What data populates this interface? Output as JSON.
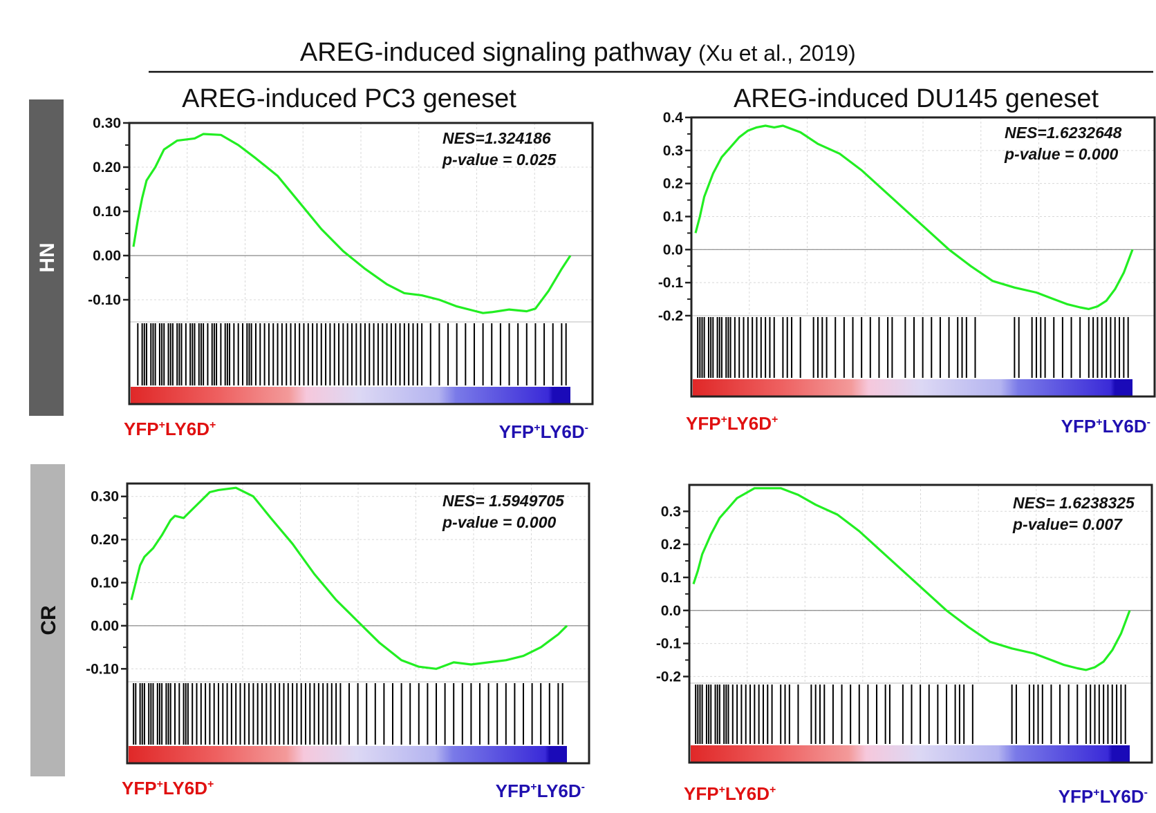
{
  "header": {
    "title_main": "AREG-induced signaling pathway",
    "title_citation": "(Xu et al., 2019)"
  },
  "rows": [
    {
      "label": "HN",
      "bg": "#5f5f5f",
      "fg": "#ffffff"
    },
    {
      "label": "CR",
      "bg": "#b4b4b4",
      "fg": "#111111"
    }
  ],
  "columns": [
    {
      "title": "AREG-induced PC3 geneset"
    },
    {
      "title": "AREG-induced DU145 geneset"
    }
  ],
  "colors": {
    "curve": "#22ee22",
    "positive_group": "#e01010",
    "negative_group": "#2010b0",
    "frame": "#222222",
    "hits": "#000000",
    "grid": "#d8d8d8"
  },
  "chart_data": [
    {
      "type": "line",
      "name": "HN / AREG-induced PC3 geneset",
      "ylim": [
        -0.15,
        0.3
      ],
      "yticks": [
        0.3,
        0.2,
        0.1,
        0.0,
        -0.1
      ],
      "ytick_labels": [
        "0.30",
        "0.20",
        "0.10",
        "0.00",
        "-0.10"
      ],
      "x": [
        0,
        0.01,
        0.02,
        0.03,
        0.05,
        0.07,
        0.1,
        0.14,
        0.16,
        0.2,
        0.24,
        0.28,
        0.33,
        0.38,
        0.43,
        0.48,
        0.53,
        0.58,
        0.62,
        0.66,
        0.7,
        0.74,
        0.78,
        0.8,
        0.82,
        0.84,
        0.86,
        0.88,
        0.9,
        0.92,
        0.95,
        0.98,
        1.0
      ],
      "y": [
        0.02,
        0.08,
        0.13,
        0.17,
        0.2,
        0.24,
        0.26,
        0.265,
        0.275,
        0.273,
        0.25,
        0.22,
        0.18,
        0.12,
        0.06,
        0.01,
        -0.03,
        -0.065,
        -0.085,
        -0.09,
        -0.1,
        -0.115,
        -0.125,
        -0.13,
        -0.128,
        -0.125,
        -0.122,
        -0.124,
        -0.126,
        -0.12,
        -0.08,
        -0.03,
        0.0
      ],
      "stats": [
        "NES=1.324186",
        "p-value = 0.025"
      ],
      "hits": [
        0.01,
        0.02,
        0.025,
        0.03,
        0.04,
        0.045,
        0.05,
        0.06,
        0.065,
        0.07,
        0.08,
        0.085,
        0.09,
        0.1,
        0.105,
        0.11,
        0.12,
        0.13,
        0.135,
        0.14,
        0.15,
        0.155,
        0.16,
        0.17,
        0.18,
        0.185,
        0.19,
        0.2,
        0.21,
        0.215,
        0.22,
        0.23,
        0.24,
        0.25,
        0.26,
        0.265,
        0.27,
        0.28,
        0.29,
        0.3,
        0.31,
        0.32,
        0.33,
        0.34,
        0.35,
        0.36,
        0.37,
        0.38,
        0.39,
        0.4,
        0.41,
        0.42,
        0.43,
        0.44,
        0.45,
        0.46,
        0.47,
        0.48,
        0.49,
        0.5,
        0.51,
        0.52,
        0.53,
        0.54,
        0.55,
        0.56,
        0.57,
        0.58,
        0.59,
        0.6,
        0.61,
        0.62,
        0.63,
        0.64,
        0.65,
        0.66,
        0.68,
        0.7,
        0.72,
        0.74,
        0.76,
        0.78,
        0.8,
        0.82,
        0.84,
        0.86,
        0.88,
        0.9,
        0.92,
        0.94,
        0.96,
        0.98,
        0.99
      ],
      "positive_label": "YFP+LY6D+",
      "negative_label": "YFP+LY6D-"
    },
    {
      "type": "line",
      "name": "HN / AREG-induced DU145 geneset",
      "ylim": [
        -0.2,
        0.4
      ],
      "yticks": [
        0.4,
        0.3,
        0.2,
        0.1,
        0.0,
        -0.1,
        -0.2
      ],
      "ytick_labels": [
        "0.4",
        "0.3",
        "0.2",
        "0.1",
        "0.0",
        "-0.1",
        "-0.2"
      ],
      "x": [
        0,
        0.01,
        0.02,
        0.04,
        0.06,
        0.08,
        0.1,
        0.12,
        0.14,
        0.16,
        0.18,
        0.2,
        0.24,
        0.28,
        0.33,
        0.38,
        0.43,
        0.48,
        0.53,
        0.58,
        0.63,
        0.68,
        0.73,
        0.78,
        0.82,
        0.85,
        0.88,
        0.9,
        0.92,
        0.94,
        0.96,
        0.98,
        1.0
      ],
      "y": [
        0.05,
        0.1,
        0.16,
        0.23,
        0.28,
        0.31,
        0.34,
        0.36,
        0.37,
        0.375,
        0.37,
        0.375,
        0.355,
        0.32,
        0.29,
        0.24,
        0.18,
        0.12,
        0.06,
        0.0,
        -0.05,
        -0.095,
        -0.115,
        -0.13,
        -0.15,
        -0.165,
        -0.175,
        -0.18,
        -0.172,
        -0.155,
        -0.12,
        -0.07,
        0.0
      ],
      "stats": [
        "NES=1.6232648",
        "p-value = 0.000"
      ],
      "hits": [
        0.005,
        0.01,
        0.015,
        0.02,
        0.03,
        0.035,
        0.04,
        0.05,
        0.055,
        0.06,
        0.07,
        0.075,
        0.08,
        0.09,
        0.1,
        0.11,
        0.12,
        0.13,
        0.14,
        0.15,
        0.16,
        0.17,
        0.18,
        0.2,
        0.21,
        0.22,
        0.24,
        0.27,
        0.28,
        0.29,
        0.3,
        0.32,
        0.34,
        0.36,
        0.38,
        0.4,
        0.42,
        0.44,
        0.45,
        0.48,
        0.5,
        0.52,
        0.54,
        0.56,
        0.58,
        0.6,
        0.61,
        0.62,
        0.64,
        0.73,
        0.74,
        0.77,
        0.78,
        0.79,
        0.8,
        0.82,
        0.84,
        0.86,
        0.88,
        0.9,
        0.91,
        0.92,
        0.93,
        0.94,
        0.95,
        0.96,
        0.97,
        0.98,
        0.99
      ],
      "positive_label": "YFP+LY6D+",
      "negative_label": "YFP+LY6D-"
    },
    {
      "type": "line",
      "name": "CR / AREG-induced PC3 geneset",
      "ylim": [
        -0.13,
        0.33
      ],
      "yticks": [
        0.3,
        0.2,
        0.1,
        0.0,
        -0.1
      ],
      "ytick_labels": [
        "0.30",
        "0.20",
        "0.10",
        "0.00",
        "-0.10"
      ],
      "x": [
        0,
        0.01,
        0.02,
        0.03,
        0.05,
        0.07,
        0.09,
        0.1,
        0.12,
        0.14,
        0.16,
        0.18,
        0.2,
        0.24,
        0.28,
        0.32,
        0.37,
        0.42,
        0.47,
        0.52,
        0.57,
        0.62,
        0.66,
        0.7,
        0.74,
        0.78,
        0.82,
        0.86,
        0.88,
        0.9,
        0.92,
        0.94,
        0.96,
        0.98,
        1.0
      ],
      "y": [
        0.06,
        0.1,
        0.14,
        0.16,
        0.18,
        0.21,
        0.245,
        0.255,
        0.25,
        0.27,
        0.29,
        0.31,
        0.315,
        0.32,
        0.3,
        0.25,
        0.19,
        0.12,
        0.06,
        0.01,
        -0.04,
        -0.08,
        -0.095,
        -0.1,
        -0.085,
        -0.09,
        -0.085,
        -0.08,
        -0.075,
        -0.07,
        -0.06,
        -0.05,
        -0.035,
        -0.02,
        0.0
      ],
      "stats": [
        "NES= 1.5949705",
        "p-value = 0.000"
      ],
      "hits": [
        0.005,
        0.01,
        0.02,
        0.025,
        0.03,
        0.04,
        0.045,
        0.05,
        0.06,
        0.065,
        0.07,
        0.08,
        0.085,
        0.09,
        0.1,
        0.11,
        0.12,
        0.125,
        0.13,
        0.14,
        0.15,
        0.16,
        0.17,
        0.18,
        0.19,
        0.2,
        0.21,
        0.22,
        0.23,
        0.24,
        0.25,
        0.26,
        0.27,
        0.28,
        0.29,
        0.3,
        0.31,
        0.32,
        0.33,
        0.34,
        0.35,
        0.36,
        0.37,
        0.38,
        0.39,
        0.4,
        0.41,
        0.42,
        0.43,
        0.44,
        0.45,
        0.46,
        0.47,
        0.48,
        0.5,
        0.52,
        0.54,
        0.56,
        0.58,
        0.6,
        0.62,
        0.64,
        0.66,
        0.68,
        0.7,
        0.72,
        0.74,
        0.76,
        0.78,
        0.8,
        0.82,
        0.84,
        0.86,
        0.88,
        0.9,
        0.92,
        0.94,
        0.96,
        0.98,
        0.99
      ],
      "positive_label": "YFP+LY6D+",
      "negative_label": "YFP+LY6D-"
    },
    {
      "type": "line",
      "name": "CR / AREG-induced DU145 geneset",
      "ylim": [
        -0.22,
        0.38
      ],
      "yticks": [
        0.3,
        0.2,
        0.1,
        0.0,
        -0.1,
        -0.2
      ],
      "ytick_labels": [
        "0.3",
        "0.2",
        "0.1",
        "0.0",
        "-0.1",
        "-0.2"
      ],
      "x": [
        0,
        0.01,
        0.02,
        0.04,
        0.06,
        0.08,
        0.1,
        0.12,
        0.14,
        0.16,
        0.18,
        0.2,
        0.24,
        0.28,
        0.33,
        0.38,
        0.43,
        0.48,
        0.53,
        0.58,
        0.63,
        0.68,
        0.73,
        0.78,
        0.82,
        0.85,
        0.88,
        0.9,
        0.92,
        0.94,
        0.96,
        0.98,
        1.0
      ],
      "y": [
        0.08,
        0.12,
        0.17,
        0.23,
        0.28,
        0.31,
        0.34,
        0.355,
        0.37,
        0.37,
        0.37,
        0.37,
        0.35,
        0.32,
        0.29,
        0.24,
        0.18,
        0.12,
        0.06,
        0.0,
        -0.05,
        -0.095,
        -0.115,
        -0.13,
        -0.15,
        -0.165,
        -0.175,
        -0.18,
        -0.172,
        -0.155,
        -0.12,
        -0.07,
        0.0
      ],
      "stats": [
        "NES= 1.6238325",
        "p-value= 0.007"
      ],
      "hits": [
        0.005,
        0.01,
        0.015,
        0.02,
        0.03,
        0.035,
        0.04,
        0.05,
        0.055,
        0.06,
        0.07,
        0.075,
        0.08,
        0.09,
        0.1,
        0.11,
        0.12,
        0.13,
        0.14,
        0.15,
        0.16,
        0.17,
        0.18,
        0.2,
        0.21,
        0.22,
        0.24,
        0.27,
        0.28,
        0.29,
        0.3,
        0.32,
        0.34,
        0.36,
        0.38,
        0.4,
        0.42,
        0.44,
        0.45,
        0.48,
        0.5,
        0.52,
        0.54,
        0.56,
        0.58,
        0.6,
        0.61,
        0.62,
        0.64,
        0.73,
        0.74,
        0.77,
        0.78,
        0.79,
        0.8,
        0.82,
        0.84,
        0.86,
        0.88,
        0.9,
        0.91,
        0.92,
        0.93,
        0.94,
        0.95,
        0.96,
        0.97,
        0.98,
        0.99
      ],
      "positive_label": "YFP+LY6D+",
      "negative_label": "YFP+LY6D-"
    }
  ]
}
